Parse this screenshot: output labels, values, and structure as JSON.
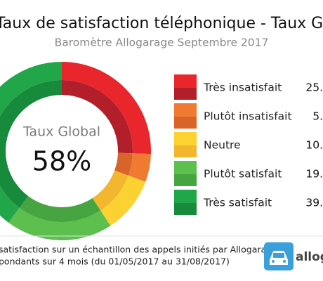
{
  "chart_data": {
    "type": "pie",
    "title": "Taux de satisfaction téléphonique - Taux Global",
    "subtitle": "Baromètre Allogarage Septembre 2017",
    "center_label": "Taux Global",
    "center_value": "58%",
    "categories": [
      "Très insatisfait",
      "Plutôt insatisfait",
      "Neutre",
      "Plutôt satisfait",
      "Très satisfait"
    ],
    "values": [
      25,
      5,
      10,
      19,
      39
    ],
    "value_labels": [
      "25.",
      "5.",
      "10.",
      "19.",
      "39."
    ],
    "colors": [
      "#e8262b",
      "#f07a32",
      "#fcd232",
      "#5cbf4e",
      "#21a74a"
    ],
    "shade_colors": [
      "#b21f2b",
      "#d9642a",
      "#f2b72e",
      "#46a540",
      "#178a3c"
    ]
  },
  "footer": {
    "lines": [
      "satisfaction sur un échantillon des appels initiés par Allogarage",
      "pondants sur 4 mois (du 01/05/2017 au 31/08/2017)"
    ],
    "logo": "allogara"
  }
}
